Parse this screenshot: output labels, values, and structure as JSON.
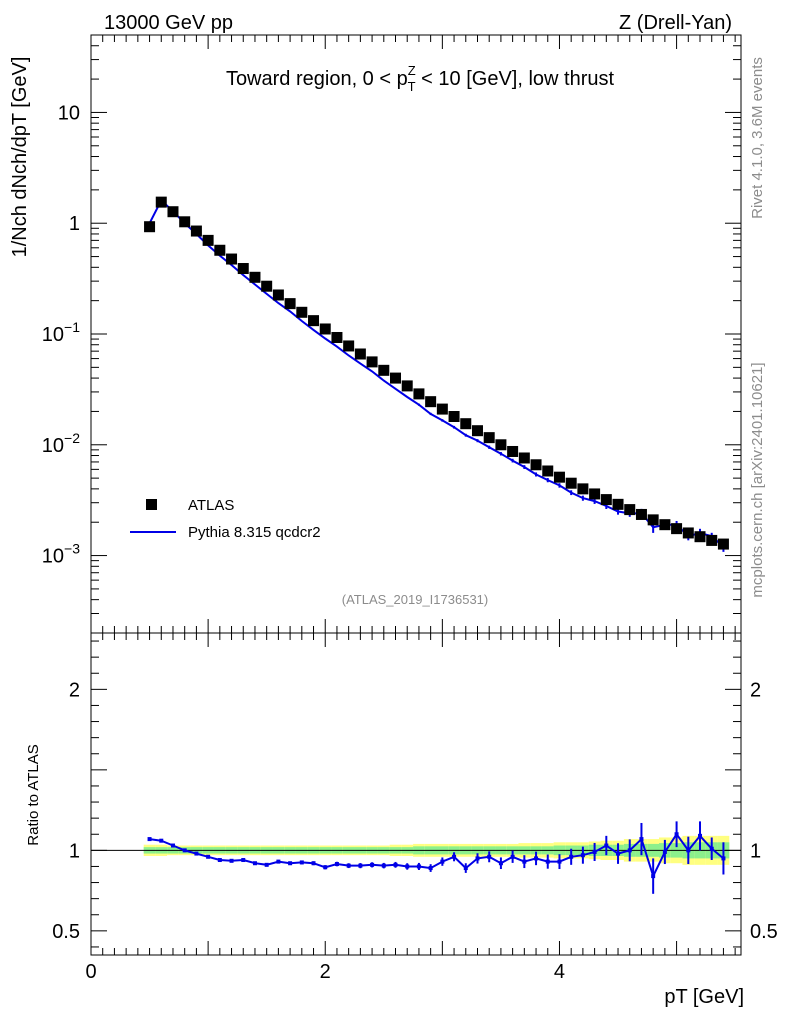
{
  "header": {
    "left": "13000 GeV pp",
    "right": "Z (Drell-Yan)"
  },
  "side_labels": {
    "rivet": "Rivet 4.1.0,  3.6M events",
    "mcplots": "mcplots.cern.ch [arXiv:2401.10621]"
  },
  "analysis_id": "(ATLAS_2019_I1736531)",
  "colors": {
    "mc": "#0000e6",
    "data": "#000000",
    "band_inner": "#8cf08c",
    "band_outer": "#ffff80",
    "watermark": "#8c8c8c"
  },
  "chart_data": [
    {
      "panel": "main",
      "type": "scatter",
      "title": "Toward region, 0 < pT^Z < 10 [GeV], low thrust",
      "title_parts": {
        "pre": "Toward region, 0 < p",
        "sup": "Z",
        "sub": "T",
        "post": " < 10 [GeV], low thrust"
      },
      "ylabel": "1/Nch dNch/dpT [GeV]",
      "yscale": "log",
      "ylim": [
        0.0002,
        50
      ],
      "xlim": [
        0,
        5.55
      ],
      "yticks": [
        {
          "v": 0.001,
          "base": "10",
          "exp": "−3"
        },
        {
          "v": 0.01,
          "base": "10",
          "exp": "−2"
        },
        {
          "v": 0.1,
          "base": "10",
          "exp": "−1"
        },
        {
          "v": 1,
          "base": "1",
          "exp": ""
        },
        {
          "v": 10,
          "base": "10",
          "exp": ""
        }
      ],
      "legend": [
        {
          "label": "ATLAS",
          "style": "marker"
        },
        {
          "label": "Pythia 8.315 qcdcr2",
          "style": "line"
        }
      ],
      "x": [
        0.5,
        0.6,
        0.7,
        0.8,
        0.9,
        1.0,
        1.1,
        1.2,
        1.3,
        1.4,
        1.5,
        1.6,
        1.7,
        1.8,
        1.9,
        2.0,
        2.1,
        2.2,
        2.3,
        2.4,
        2.5,
        2.6,
        2.7,
        2.8,
        2.9,
        3.0,
        3.1,
        3.2,
        3.3,
        3.4,
        3.5,
        3.6,
        3.7,
        3.8,
        3.9,
        4.0,
        4.1,
        4.2,
        4.3,
        4.4,
        4.5,
        4.6,
        4.7,
        4.8,
        4.9,
        5.0,
        5.1,
        5.2,
        5.3,
        5.4
      ],
      "series": [
        {
          "name": "ATLAS",
          "values": [
            0.93,
            1.55,
            1.27,
            1.03,
            0.85,
            0.7,
            0.57,
            0.475,
            0.39,
            0.325,
            0.27,
            0.225,
            0.188,
            0.157,
            0.132,
            0.111,
            0.093,
            0.078,
            0.066,
            0.056,
            0.047,
            0.04,
            0.034,
            0.0288,
            0.0245,
            0.021,
            0.018,
            0.0155,
            0.0134,
            0.0116,
            0.01,
            0.0087,
            0.0076,
            0.0066,
            0.0058,
            0.0051,
            0.0045,
            0.004,
            0.0036,
            0.0032,
            0.0029,
            0.0026,
            0.00235,
            0.0021,
            0.0019,
            0.00175,
            0.0016,
            0.00148,
            0.00137,
            0.00127
          ]
        },
        {
          "name": "Pythia 8.315 qcdcr2",
          "values": [
            1.0,
            1.61,
            1.28,
            1.0,
            0.8,
            0.63,
            0.51,
            0.42,
            0.34,
            0.28,
            0.23,
            0.19,
            0.16,
            0.131,
            0.109,
            0.091,
            0.077,
            0.064,
            0.054,
            0.046,
            0.038,
            0.032,
            0.027,
            0.023,
            0.019,
            0.0166,
            0.0144,
            0.0122,
            0.0109,
            0.0095,
            0.0083,
            0.0072,
            0.0063,
            0.0054,
            0.0048,
            0.0043,
            0.0037,
            0.0033,
            0.0031,
            0.0028,
            0.0025,
            0.0024,
            0.0024,
            0.0018,
            0.0019,
            0.0019,
            0.0015,
            0.0016,
            0.0015,
            0.0012
          ]
        }
      ]
    },
    {
      "panel": "ratio",
      "type": "line",
      "ylabel": "Ratio to ATLAS",
      "xlabel": "pT [GeV]",
      "ylim": [
        0.35,
        2.35
      ],
      "xlim": [
        0,
        5.55
      ],
      "yticks": [
        {
          "v": 0.5,
          "label": "0.5"
        },
        {
          "v": 1,
          "label": "1"
        },
        {
          "v": 2,
          "label": "2"
        }
      ],
      "xticks": [
        {
          "v": 0,
          "label": "0"
        },
        {
          "v": 2,
          "label": "2"
        },
        {
          "v": 4,
          "label": "4"
        }
      ],
      "x": [
        0.5,
        0.6,
        0.7,
        0.8,
        0.9,
        1.0,
        1.1,
        1.2,
        1.3,
        1.4,
        1.5,
        1.6,
        1.7,
        1.8,
        1.9,
        2.0,
        2.1,
        2.2,
        2.3,
        2.4,
        2.5,
        2.6,
        2.7,
        2.8,
        2.9,
        3.0,
        3.1,
        3.2,
        3.3,
        3.4,
        3.5,
        3.6,
        3.7,
        3.8,
        3.9,
        4.0,
        4.1,
        4.2,
        4.3,
        4.4,
        4.5,
        4.6,
        4.7,
        4.8,
        4.9,
        5.0,
        5.1,
        5.2,
        5.3,
        5.4
      ],
      "series": [
        {
          "name": "Pythia 8.315 qcdcr2 / ATLAS",
          "values": [
            1.07,
            1.06,
            1.03,
            1.0,
            0.98,
            0.96,
            0.94,
            0.935,
            0.94,
            0.92,
            0.91,
            0.93,
            0.92,
            0.925,
            0.92,
            0.895,
            0.915,
            0.905,
            0.905,
            0.91,
            0.905,
            0.91,
            0.9,
            0.9,
            0.89,
            0.93,
            0.96,
            0.89,
            0.95,
            0.96,
            0.92,
            0.96,
            0.93,
            0.95,
            0.93,
            0.93,
            0.96,
            0.97,
            0.99,
            1.03,
            0.98,
            1.0,
            1.07,
            0.84,
            0.99,
            1.1,
            1.0,
            1.09,
            1.01,
            0.95
          ],
          "errors": [
            0.005,
            0.005,
            0.005,
            0.005,
            0.005,
            0.005,
            0.007,
            0.008,
            0.008,
            0.009,
            0.01,
            0.011,
            0.011,
            0.012,
            0.012,
            0.013,
            0.014,
            0.015,
            0.016,
            0.016,
            0.017,
            0.018,
            0.02,
            0.022,
            0.024,
            0.026,
            0.028,
            0.03,
            0.032,
            0.034,
            0.036,
            0.038,
            0.04,
            0.042,
            0.044,
            0.046,
            0.05,
            0.053,
            0.056,
            0.06,
            0.064,
            0.068,
            0.1,
            0.11,
            0.075,
            0.08,
            0.085,
            0.09,
            0.07,
            0.1
          ]
        }
      ],
      "band_inner": [
        0.02,
        0.02,
        0.02,
        0.02,
        0.02,
        0.02,
        0.02,
        0.02,
        0.02,
        0.02,
        0.02,
        0.02,
        0.02,
        0.02,
        0.02,
        0.02,
        0.02,
        0.02,
        0.02,
        0.02,
        0.02,
        0.02,
        0.02,
        0.025,
        0.025,
        0.025,
        0.025,
        0.025,
        0.025,
        0.025,
        0.025,
        0.025,
        0.025,
        0.025,
        0.025,
        0.03,
        0.03,
        0.03,
        0.035,
        0.035,
        0.035,
        0.04,
        0.04,
        0.04,
        0.045,
        0.045,
        0.05,
        0.05,
        0.05,
        0.05
      ],
      "band_outer": [
        0.035,
        0.035,
        0.03,
        0.03,
        0.03,
        0.03,
        0.03,
        0.03,
        0.03,
        0.03,
        0.03,
        0.03,
        0.03,
        0.03,
        0.03,
        0.03,
        0.03,
        0.03,
        0.03,
        0.03,
        0.03,
        0.035,
        0.035,
        0.04,
        0.04,
        0.04,
        0.04,
        0.04,
        0.04,
        0.04,
        0.04,
        0.04,
        0.045,
        0.045,
        0.045,
        0.05,
        0.05,
        0.05,
        0.055,
        0.06,
        0.06,
        0.07,
        0.07,
        0.07,
        0.08,
        0.08,
        0.09,
        0.09,
        0.09,
        0.09
      ]
    }
  ]
}
